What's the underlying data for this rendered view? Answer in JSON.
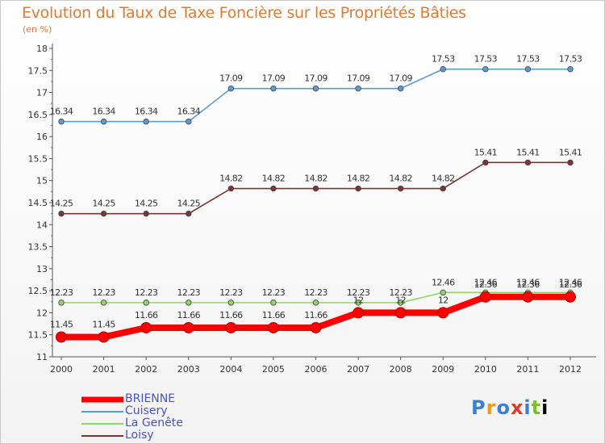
{
  "chart_data": {
    "type": "line",
    "title": "Evolution du Taux de Taxe Foncière sur les Propriétés Bâties",
    "subtitle": "(en %)",
    "x": [
      "2000",
      "2001",
      "2002",
      "2003",
      "2004",
      "2005",
      "2006",
      "2007",
      "2008",
      "2009",
      "2010",
      "2011",
      "2012"
    ],
    "ylim": [
      11,
      18
    ],
    "yticks": [
      "11",
      "11.5",
      "12",
      "12.5",
      "13",
      "13.5",
      "14",
      "14.5",
      "15",
      "15.5",
      "16",
      "16.5",
      "17",
      "17.5",
      "18"
    ],
    "grid": false,
    "legend_position": "bottom-left",
    "series": [
      {
        "name": "BRIENNE",
        "color": "#ff0000",
        "values": [
          11.45,
          11.45,
          11.66,
          11.66,
          11.66,
          11.66,
          11.66,
          12,
          12,
          12,
          12.36,
          12.36,
          12.36
        ],
        "labels": [
          "11.45",
          "11.45",
          "11.66",
          "11.66",
          "11.66",
          "11.66",
          "11.66",
          "12",
          "12",
          "12",
          "12.36",
          "12.36",
          "12.36"
        ]
      },
      {
        "name": "Cuisery",
        "color": "#5b9bd5",
        "values": [
          16.34,
          16.34,
          16.34,
          16.34,
          17.09,
          17.09,
          17.09,
          17.09,
          17.09,
          17.53,
          17.53,
          17.53,
          17.53
        ],
        "labels": [
          "16.34",
          "16.34",
          "16.34",
          "16.34",
          "17.09",
          "17.09",
          "17.09",
          "17.09",
          "17.09",
          "17.53",
          "17.53",
          "17.53",
          "17.53"
        ]
      },
      {
        "name": "La Genête",
        "color": "#8fd66a",
        "values": [
          12.23,
          12.23,
          12.23,
          12.23,
          12.23,
          12.23,
          12.23,
          12.23,
          12.23,
          12.46,
          12.46,
          12.46,
          12.46
        ],
        "labels": [
          "12.23",
          "12.23",
          "12.23",
          "12.23",
          "12.23",
          "12.23",
          "12.23",
          "12.23",
          "12.23",
          "12.46",
          "12.46",
          "12.46",
          "12.46"
        ]
      },
      {
        "name": "Loisy",
        "color": "#7b3535",
        "values": [
          14.25,
          14.25,
          14.25,
          14.25,
          14.82,
          14.82,
          14.82,
          14.82,
          14.82,
          14.82,
          15.41,
          15.41,
          15.41
        ],
        "labels": [
          "14.25",
          "14.25",
          "14.25",
          "14.25",
          "14.82",
          "14.82",
          "14.82",
          "14.82",
          "14.82",
          "14.82",
          "15.41",
          "15.41",
          "15.41"
        ]
      }
    ]
  },
  "logo": {
    "letters": [
      "P",
      "r",
      "o",
      "x",
      "i",
      "t",
      "i"
    ]
  }
}
